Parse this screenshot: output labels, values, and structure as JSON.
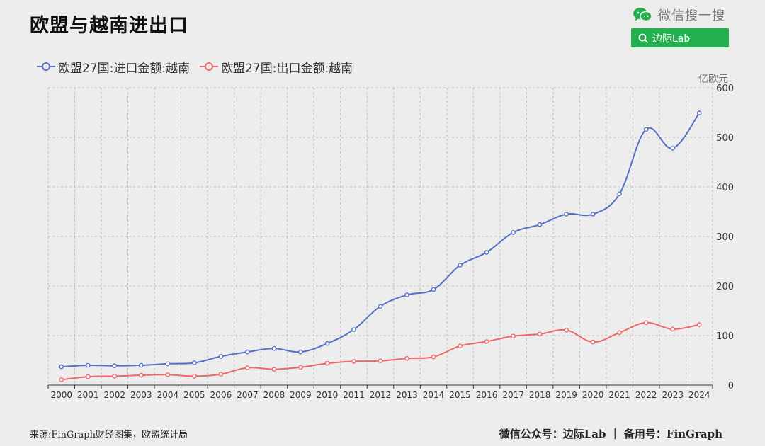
{
  "title": "欧盟与越南进出口",
  "wechat": {
    "brand_text": "微信搜一搜",
    "search_text": "边际Lab",
    "brand_icon": "wechat-icon",
    "search_icon": "search-icon",
    "accent": "#22b14c"
  },
  "footer": {
    "source": "来源:FinGraph财经图集，欧盟统计局",
    "credit": "微信公众号：边际Lab ｜ 备用号：FinGraph"
  },
  "chart_data": {
    "type": "line",
    "smooth": true,
    "x": [
      "2000",
      "2001",
      "2002",
      "2003",
      "2004",
      "2005",
      "2006",
      "2007",
      "2008",
      "2009",
      "2010",
      "2011",
      "2012",
      "2013",
      "2014",
      "2015",
      "2016",
      "2017",
      "2018",
      "2019",
      "2020",
      "2021",
      "2022",
      "2023",
      "2024"
    ],
    "series": [
      {
        "name": "欧盟27国:进口金额:越南",
        "color": "#5470c6",
        "values": [
          37,
          40,
          39,
          40,
          43,
          45,
          58,
          67,
          74,
          67,
          84,
          112,
          159,
          182,
          193,
          242,
          268,
          308,
          324,
          345,
          345,
          386,
          516,
          478,
          549
        ]
      },
      {
        "name": "欧盟27国:出口金额:越南",
        "color": "#ee6666",
        "values": [
          11,
          17,
          18,
          20,
          21,
          18,
          22,
          35,
          32,
          36,
          44,
          48,
          49,
          54,
          57,
          79,
          88,
          99,
          103,
          111,
          87,
          106,
          126,
          113,
          122
        ]
      }
    ],
    "y_axis_position": "right",
    "ylim": [
      0,
      600
    ],
    "yticks": [
      0,
      100,
      200,
      300,
      400,
      500,
      600
    ],
    "y_unit": "亿欧元",
    "grid": true,
    "legend_position": "top-left"
  }
}
